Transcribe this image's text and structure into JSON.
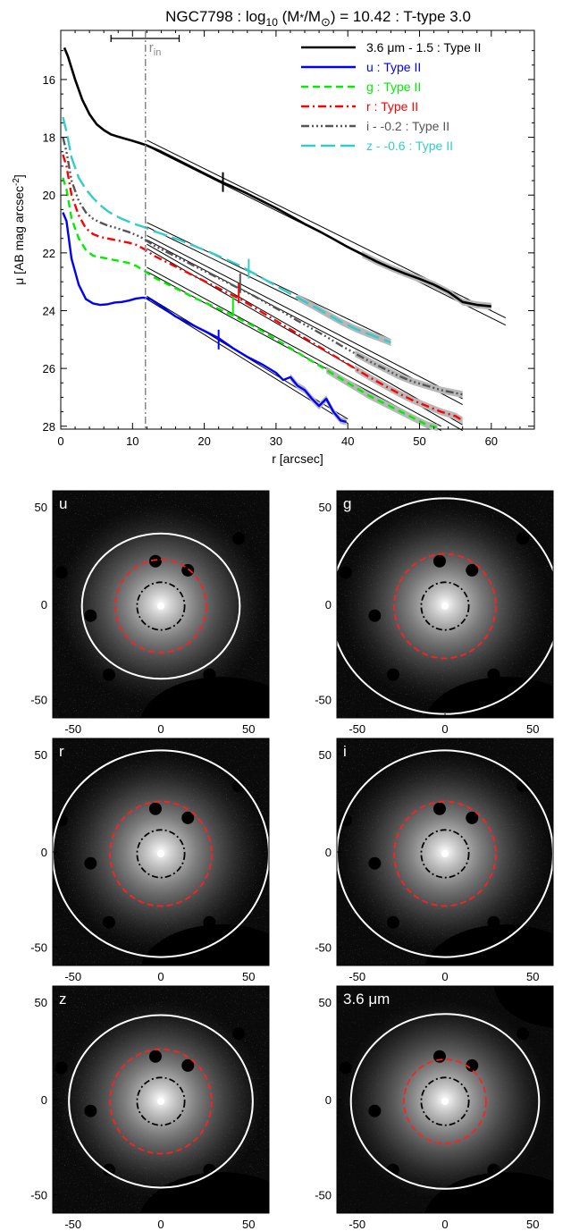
{
  "chart_data": [
    {
      "type": "line",
      "title_parts": {
        "a": "NGC7798 : log",
        "b": "10",
        "c": " (M",
        "d": "*",
        "e": "/M",
        "f": "⊙",
        "g": ") = 10.42 : T-type 3.0"
      },
      "xlabel": "r [arcsec]",
      "ylabel": "μ [AB mag arcsec",
      "ylabel_sup": "-2",
      "ylabel_tail": "]",
      "xlim": [
        0,
        66
      ],
      "ylim": [
        28.1,
        14.3
      ],
      "x_ticks": [
        "0",
        "10",
        "20",
        "30",
        "40",
        "50",
        "60"
      ],
      "y_ticks": [
        "16",
        "18",
        "20",
        "22",
        "24",
        "26",
        "28"
      ],
      "r_in": 11.8,
      "r_in_label": "r",
      "r_in_sub": "in",
      "r_in_errbar": [
        7.0,
        16.5
      ],
      "series": [
        {
          "name": "3.6 μm - 1.5 : Type II",
          "color": "#000000",
          "dash": "",
          "width": 2.6,
          "x": [
            0.5,
            1,
            2,
            3,
            4,
            5,
            6,
            7,
            8,
            9,
            10,
            11,
            12,
            14,
            16,
            18,
            20,
            22,
            24,
            26,
            28,
            30,
            32,
            34,
            36,
            38,
            40,
            42,
            44,
            46,
            48,
            50,
            52,
            54,
            56,
            58,
            60
          ],
          "y": [
            14.9,
            15.2,
            16.0,
            16.7,
            17.2,
            17.55,
            17.75,
            17.9,
            17.98,
            18.05,
            18.12,
            18.2,
            18.28,
            18.5,
            18.75,
            19.0,
            19.25,
            19.5,
            19.72,
            19.95,
            20.2,
            20.45,
            20.72,
            21.0,
            21.25,
            21.52,
            21.8,
            22.05,
            22.3,
            22.52,
            22.72,
            22.9,
            23.1,
            23.35,
            23.7,
            23.8,
            23.85
          ],
          "break": 22.6,
          "break_mu": 19.55,
          "fits": [
            [
              12,
              18.3,
              62,
              24.5
            ],
            [
              12,
              18.1,
              62,
              24.25
            ]
          ]
        },
        {
          "name": "u : Type II",
          "color": "#0000ff",
          "dash": "",
          "width": 2.4,
          "x": [
            0.3,
            0.8,
            1.5,
            2.5,
            3.5,
            4.5,
            5.5,
            6.5,
            7.5,
            8.5,
            9.5,
            10.5,
            11.5,
            12.5,
            14,
            16,
            18,
            20,
            22,
            24,
            26,
            28,
            30,
            31,
            32,
            33,
            34,
            35,
            36,
            37,
            38,
            39,
            39.8
          ],
          "y": [
            20.6,
            20.9,
            22.2,
            23.1,
            23.6,
            23.75,
            23.8,
            23.78,
            23.72,
            23.7,
            23.65,
            23.58,
            23.55,
            23.6,
            23.85,
            24.2,
            24.45,
            24.7,
            24.95,
            25.3,
            25.6,
            25.85,
            26.15,
            26.4,
            26.3,
            26.6,
            26.75,
            27.05,
            27.3,
            27.05,
            27.5,
            27.8,
            27.85
          ],
          "break": 22.0,
          "break_mu": 25.0,
          "fits": [
            [
              12,
              23.6,
              40,
              27.9
            ],
            [
              12,
              23.5,
              40,
              27.75
            ]
          ]
        },
        {
          "name": "g : Type II",
          "color": "#00ee00",
          "dash": "8,5",
          "width": 2.4,
          "x": [
            0.3,
            0.8,
            1.5,
            2.5,
            3.5,
            4.5,
            5.5,
            6.5,
            7.5,
            8.5,
            9.5,
            10.5,
            11.5,
            13,
            15,
            17,
            19,
            21,
            23,
            25,
            27,
            29,
            31,
            33,
            35,
            37,
            39,
            41,
            43,
            45,
            47,
            49,
            51,
            52.5
          ],
          "y": [
            19.4,
            19.8,
            20.8,
            21.5,
            21.9,
            22.1,
            22.15,
            22.2,
            22.25,
            22.3,
            22.35,
            22.45,
            22.6,
            22.85,
            23.1,
            23.35,
            23.6,
            23.82,
            24.05,
            24.3,
            24.55,
            24.85,
            25.15,
            25.45,
            25.75,
            26.05,
            26.35,
            26.65,
            26.95,
            27.2,
            27.45,
            27.7,
            27.95,
            28.05
          ],
          "break": 24.0,
          "break_mu": 23.85,
          "fits": [
            [
              12,
              22.65,
              53,
              28.15
            ],
            [
              12,
              22.5,
              53,
              28.0
            ]
          ]
        },
        {
          "name": "r : Type II",
          "color": "#ff0000",
          "dash": "9,4,2,4",
          "width": 2.4,
          "x": [
            0.3,
            0.8,
            1.5,
            2.5,
            3.5,
            4.5,
            5.5,
            6.5,
            7.5,
            8.5,
            9.5,
            10.5,
            11.5,
            13,
            15,
            17,
            19,
            21,
            23,
            25,
            27,
            29,
            31,
            33,
            35,
            37,
            39,
            41,
            43,
            45,
            47,
            49,
            51,
            53,
            55,
            56
          ],
          "y": [
            18.6,
            19.0,
            20.0,
            20.7,
            21.15,
            21.35,
            21.45,
            21.5,
            21.55,
            21.6,
            21.65,
            21.72,
            21.85,
            22.1,
            22.35,
            22.6,
            22.85,
            23.1,
            23.35,
            23.6,
            23.9,
            24.2,
            24.5,
            24.8,
            25.1,
            25.4,
            25.7,
            26.0,
            26.3,
            26.58,
            26.85,
            27.1,
            27.3,
            27.5,
            27.65,
            27.8
          ],
          "break": 24.8,
          "break_mu": 23.4,
          "fits": [
            [
              12,
              21.85,
              56,
              28.15
            ],
            [
              12,
              21.7,
              56,
              27.95
            ]
          ]
        },
        {
          "name": "i - -0.2 : Type II",
          "color": "#555555",
          "dash": "9,3,2,3,2,3,2,3",
          "width": 2.4,
          "x": [
            0.3,
            0.8,
            1.5,
            2.5,
            3.5,
            4.5,
            5.5,
            6.5,
            7.5,
            8.5,
            9.5,
            10.5,
            11.5,
            13,
            15,
            17,
            19,
            21,
            23,
            25,
            27,
            29,
            31,
            33,
            35,
            37,
            39,
            41,
            43,
            45,
            47,
            49,
            51,
            53,
            55,
            56
          ],
          "y": [
            18.0,
            18.5,
            19.5,
            20.2,
            20.6,
            20.82,
            20.95,
            21.05,
            21.12,
            21.2,
            21.28,
            21.38,
            21.5,
            21.75,
            22.0,
            22.25,
            22.5,
            22.75,
            23.0,
            23.25,
            23.5,
            23.78,
            24.05,
            24.35,
            24.62,
            24.9,
            25.2,
            25.48,
            25.75,
            26.0,
            26.25,
            26.45,
            26.6,
            26.75,
            26.85,
            26.9
          ],
          "break": 25.0,
          "break_mu": 23.05,
          "fits": [
            [
              12,
              21.55,
              56,
              27.25
            ],
            [
              12,
              21.4,
              56,
              27.05
            ]
          ]
        },
        {
          "name": "z - -0.6 : Type II",
          "color": "#33cccc",
          "dash": "16,6",
          "width": 2.4,
          "x": [
            0.3,
            0.8,
            1.5,
            2.5,
            3.5,
            4.5,
            5.5,
            6.5,
            7.5,
            8.5,
            9.5,
            10.5,
            11.5,
            13,
            15,
            17,
            19,
            21,
            23,
            25,
            27,
            29,
            31,
            33,
            35,
            37,
            39,
            41,
            43,
            45,
            46
          ],
          "y": [
            17.3,
            17.8,
            18.7,
            19.4,
            19.8,
            20.1,
            20.35,
            20.55,
            20.7,
            20.82,
            20.92,
            21.02,
            21.1,
            21.25,
            21.42,
            21.6,
            21.8,
            22.0,
            22.22,
            22.45,
            22.72,
            23.0,
            23.28,
            23.55,
            23.82,
            24.1,
            24.38,
            24.62,
            24.82,
            25.0,
            25.1
          ],
          "break": 26.2,
          "break_mu": 22.55,
          "fits": [
            [
              12,
              21.1,
              46,
              25.2
            ],
            [
              12,
              20.95,
              46,
              25.0
            ]
          ]
        }
      ]
    },
    {
      "type": "image-grid",
      "panels": [
        {
          "label": "u"
        },
        {
          "label": "g"
        },
        {
          "label": "r"
        },
        {
          "label": "i"
        },
        {
          "label": "z"
        },
        {
          "label": "3.6 μm"
        }
      ],
      "x_ticks": [
        "-50",
        "0",
        "50"
      ],
      "y_ticks": [
        "50",
        "0",
        "-50"
      ],
      "colors": {
        "outer_ellipse": "#ffffff",
        "mid_ellipse": "#ff2020",
        "inner_ellipse": "#000000"
      }
    }
  ]
}
